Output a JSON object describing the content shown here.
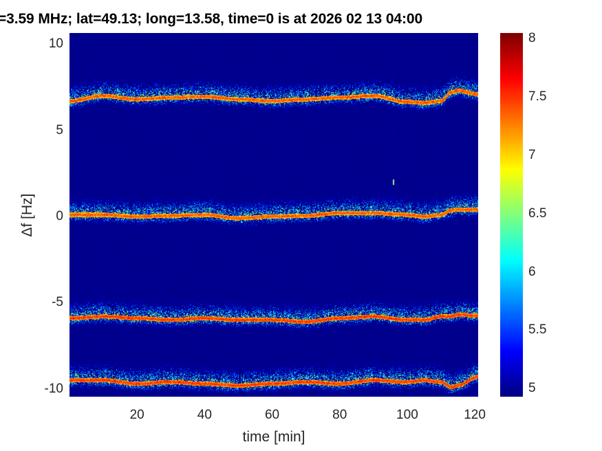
{
  "chart_data": {
    "type": "heatmap",
    "title": "=3.59 MHz;  lat=49.13; long=13.58, time=0 is at 2026 02 13 04:00",
    "xlabel": "time [min]",
    "ylabel": "Δf [Hz]",
    "xlim": [
      0,
      121
    ],
    "ylim": [
      -10.45,
      10.65
    ],
    "xticks": [
      "20",
      "40",
      "60",
      "80",
      "100",
      "120"
    ],
    "xtick_values": [
      20,
      40,
      60,
      80,
      100,
      120
    ],
    "yticks": [
      "10",
      "5",
      "0",
      "-5",
      "-10"
    ],
    "ytick_values": [
      10,
      5,
      0,
      -5,
      -10
    ],
    "colormap": "jet",
    "clim": [
      4.93,
      8.05
    ],
    "colorbar_ticks": [
      "8",
      "7.5",
      "7",
      "6.5",
      "6",
      "5.5",
      "5"
    ],
    "colorbar_tick_values": [
      8,
      7.5,
      7,
      6.5,
      6,
      5.5,
      5
    ],
    "background_level": 4.95,
    "grid": false,
    "band_times": [
      0,
      10,
      20,
      30,
      40,
      50,
      60,
      70,
      80,
      90,
      100,
      105,
      110,
      113,
      115,
      121
    ],
    "bands": [
      {
        "center_hz": [
          6.7,
          7.0,
          6.8,
          6.9,
          6.95,
          6.8,
          6.7,
          6.8,
          6.9,
          7.0,
          6.65,
          6.6,
          6.7,
          7.2,
          7.3,
          7.1
        ],
        "peak": 7.6
      },
      {
        "center_hz": [
          0.1,
          0.1,
          0.0,
          0.05,
          0.1,
          -0.1,
          0.0,
          0.05,
          0.2,
          0.2,
          0.1,
          0.0,
          0.1,
          0.35,
          0.4,
          0.4
        ],
        "peak": 7.6
      },
      {
        "center_hz": [
          -5.9,
          -5.8,
          -5.9,
          -6.0,
          -5.9,
          -6.0,
          -6.0,
          -6.1,
          -5.9,
          -5.8,
          -6.0,
          -6.0,
          -5.8,
          -5.8,
          -5.7,
          -5.75
        ],
        "peak": 7.7
      },
      {
        "center_hz": [
          -9.5,
          -9.5,
          -9.7,
          -9.6,
          -9.7,
          -9.8,
          -9.7,
          -9.6,
          -9.7,
          -9.5,
          -9.6,
          -9.5,
          -9.6,
          -9.9,
          -9.8,
          -9.3
        ],
        "peak": 7.7
      }
    ],
    "artifacts": [
      {
        "type": "vertical-streak",
        "time": 96,
        "spot_hz": 2.0
      }
    ]
  }
}
